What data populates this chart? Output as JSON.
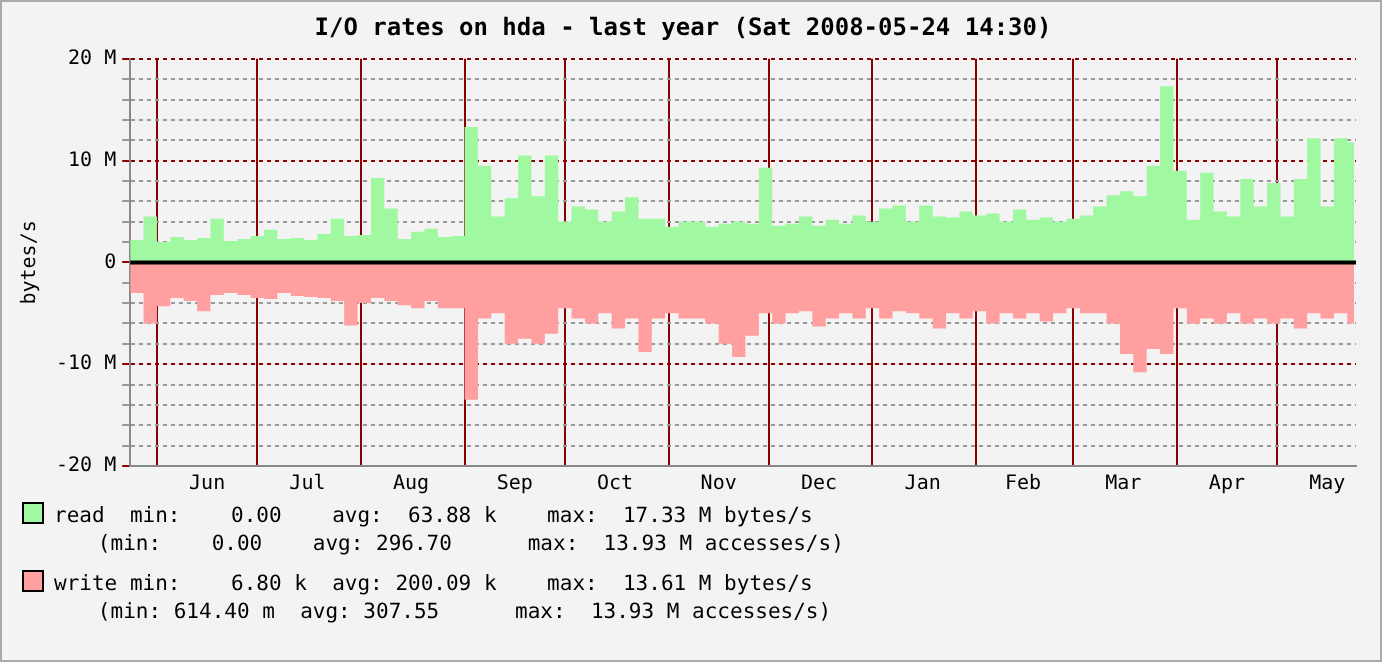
{
  "chart_data": {
    "type": "area",
    "title": "I/O rates on hda - last year (Sat 2008-05-24 14:30)",
    "ylabel": "bytes/s",
    "x": [
      "2007-05-24",
      "2007-05-28",
      "2007-06-01",
      "2007-06-05",
      "2007-06-09",
      "2007-06-13",
      "2007-06-17",
      "2007-06-21",
      "2007-06-25",
      "2007-06-29",
      "2007-07-03",
      "2007-07-07",
      "2007-07-11",
      "2007-07-15",
      "2007-07-19",
      "2007-07-23",
      "2007-07-27",
      "2007-07-31",
      "2007-08-04",
      "2007-08-08",
      "2007-08-12",
      "2007-08-16",
      "2007-08-20",
      "2007-08-24",
      "2007-08-28",
      "2007-09-01",
      "2007-09-05",
      "2007-09-09",
      "2007-09-13",
      "2007-09-17",
      "2007-09-21",
      "2007-09-25",
      "2007-09-29",
      "2007-10-03",
      "2007-10-07",
      "2007-10-11",
      "2007-10-15",
      "2007-10-19",
      "2007-10-23",
      "2007-10-27",
      "2007-10-31",
      "2007-11-04",
      "2007-11-08",
      "2007-11-12",
      "2007-11-16",
      "2007-11-20",
      "2007-11-24",
      "2007-11-28",
      "2007-12-02",
      "2007-12-06",
      "2007-12-10",
      "2007-12-14",
      "2007-12-18",
      "2007-12-22",
      "2007-12-26",
      "2007-12-30",
      "2008-01-03",
      "2008-01-07",
      "2008-01-11",
      "2008-01-15",
      "2008-01-19",
      "2008-01-23",
      "2008-01-27",
      "2008-01-31",
      "2008-02-04",
      "2008-02-08",
      "2008-02-12",
      "2008-02-16",
      "2008-02-20",
      "2008-02-24",
      "2008-02-28",
      "2008-03-03",
      "2008-03-07",
      "2008-03-11",
      "2008-03-15",
      "2008-03-19",
      "2008-03-23",
      "2008-03-27",
      "2008-03-31",
      "2008-04-04",
      "2008-04-08",
      "2008-04-12",
      "2008-04-16",
      "2008-04-20",
      "2008-04-24",
      "2008-04-28",
      "2008-05-02",
      "2008-05-06",
      "2008-05-10",
      "2008-05-14",
      "2008-05-18",
      "2008-05-22",
      "2008-05-24"
    ],
    "series": [
      {
        "name": "read",
        "color": "#a0f8a0",
        "values": [
          2.2,
          4.5,
          2.0,
          2.5,
          2.2,
          2.4,
          4.3,
          2.1,
          2.3,
          2.6,
          3.2,
          2.3,
          2.4,
          2.2,
          2.8,
          4.3,
          2.6,
          2.7,
          8.3,
          5.3,
          2.3,
          3.0,
          3.3,
          2.5,
          2.6,
          13.3,
          9.5,
          4.5,
          6.3,
          10.5,
          6.5,
          10.5,
          4.0,
          5.5,
          5.2,
          4.0,
          5.0,
          6.4,
          4.3,
          4.3,
          3.5,
          4.0,
          4.0,
          3.5,
          3.8,
          4.0,
          3.8,
          9.3,
          3.6,
          3.8,
          4.5,
          3.6,
          4.2,
          3.8,
          4.6,
          4.0,
          5.3,
          5.6,
          4.0,
          5.6,
          4.5,
          4.4,
          5.0,
          4.6,
          4.8,
          4.0,
          5.2,
          4.2,
          4.4,
          4.0,
          4.3,
          4.6,
          5.5,
          6.6,
          7.0,
          6.5,
          9.5,
          17.3,
          9.0,
          4.2,
          8.8,
          5.0,
          4.5,
          8.2,
          5.5,
          7.8,
          4.5,
          8.2,
          12.2,
          5.5,
          12.2,
          11.8,
          16.0
        ]
      },
      {
        "name": "write",
        "color": "#ff9f9f",
        "values": [
          -3.0,
          -6.0,
          -4.3,
          -3.5,
          -3.8,
          -4.8,
          -3.2,
          -3.0,
          -3.2,
          -3.5,
          -3.6,
          -3.0,
          -3.3,
          -3.4,
          -3.5,
          -3.8,
          -6.2,
          -4.0,
          -3.5,
          -3.8,
          -4.2,
          -4.5,
          -3.8,
          -4.5,
          -4.5,
          -13.5,
          -5.5,
          -5.0,
          -8.0,
          -7.5,
          -8.0,
          -7.0,
          -4.5,
          -5.5,
          -6.0,
          -5.0,
          -6.5,
          -5.5,
          -8.8,
          -5.5,
          -5.0,
          -5.5,
          -5.5,
          -6.0,
          -8.0,
          -9.3,
          -7.2,
          -5.0,
          -6.0,
          -5.0,
          -4.8,
          -6.3,
          -5.5,
          -5.0,
          -5.5,
          -4.5,
          -5.5,
          -4.8,
          -5.0,
          -5.5,
          -6.5,
          -5.0,
          -5.5,
          -4.8,
          -6.0,
          -5.0,
          -5.5,
          -5.0,
          -5.8,
          -5.0,
          -4.5,
          -5.0,
          -5.0,
          -6.0,
          -9.0,
          -10.8,
          -8.5,
          -9.0,
          -4.5,
          -6.0,
          -5.5,
          -6.0,
          -5.0,
          -6.0,
          -5.5,
          -6.0,
          -5.5,
          -6.5,
          -5.0,
          -5.5,
          -5.0,
          -6.0,
          -4.0
        ]
      }
    ],
    "xlim": [
      "2007-05-24",
      "2008-05-24T14:30"
    ],
    "xticks": [
      {
        "value": "2007-06-01",
        "label": null
      },
      {
        "value": "2007-06-16",
        "label": "Jun"
      },
      {
        "value": "2007-07-01",
        "label": null
      },
      {
        "value": "2007-07-16",
        "label": "Jul"
      },
      {
        "value": "2007-08-01",
        "label": null
      },
      {
        "value": "2007-08-16",
        "label": "Aug"
      },
      {
        "value": "2007-09-01",
        "label": null
      },
      {
        "value": "2007-09-16",
        "label": "Sep"
      },
      {
        "value": "2007-10-01",
        "label": null
      },
      {
        "value": "2007-10-16",
        "label": "Oct"
      },
      {
        "value": "2007-11-01",
        "label": null
      },
      {
        "value": "2007-11-16",
        "label": "Nov"
      },
      {
        "value": "2007-12-01",
        "label": null
      },
      {
        "value": "2007-12-16",
        "label": "Dec"
      },
      {
        "value": "2008-01-01",
        "label": null
      },
      {
        "value": "2008-01-16",
        "label": "Jan"
      },
      {
        "value": "2008-02-01",
        "label": null
      },
      {
        "value": "2008-02-15",
        "label": "Feb"
      },
      {
        "value": "2008-03-01",
        "label": null
      },
      {
        "value": "2008-03-16",
        "label": "Mar"
      },
      {
        "value": "2008-04-01",
        "label": null
      },
      {
        "value": "2008-04-16",
        "label": "Apr"
      },
      {
        "value": "2008-05-01",
        "label": null
      },
      {
        "value": "2008-05-16",
        "label": "May"
      }
    ],
    "ylim": [
      -20,
      20
    ],
    "yticks": [
      {
        "value": -20,
        "label": "-20 M"
      },
      {
        "value": -18,
        "label": null
      },
      {
        "value": -16,
        "label": null
      },
      {
        "value": -14,
        "label": null
      },
      {
        "value": -12,
        "label": null
      },
      {
        "value": -10,
        "label": "-10 M"
      },
      {
        "value": -8,
        "label": null
      },
      {
        "value": -6,
        "label": null
      },
      {
        "value": -4,
        "label": null
      },
      {
        "value": -2,
        "label": null
      },
      0,
      {
        "value": 2,
        "label": null
      },
      {
        "value": 4,
        "label": null
      },
      {
        "value": 6,
        "label": null
      },
      {
        "value": 8,
        "label": null
      },
      {
        "value": 10,
        "label": "10 M"
      },
      {
        "value": 12,
        "label": null
      },
      {
        "value": 14,
        "label": null
      },
      {
        "value": 16,
        "label": null
      },
      {
        "value": 18,
        "label": null
      },
      {
        "value": 20,
        "label": "20 M"
      }
    ],
    "grid": true,
    "legend": "bottom",
    "marker": "none",
    "annotations": [
      "min:    0.00    avg:  63.88 k    max:  17.33 M bytes/s",
      "(min:    0.00    avg: 296.70      max:  13.93 M accesses/s)",
      "min:    6.80 k  avg: 200.09 k    max:  13.61 M bytes/s",
      "(min: 614.40 m  avg: 307.55      max:  13.93 M accesses/s)"
    ]
  }
}
